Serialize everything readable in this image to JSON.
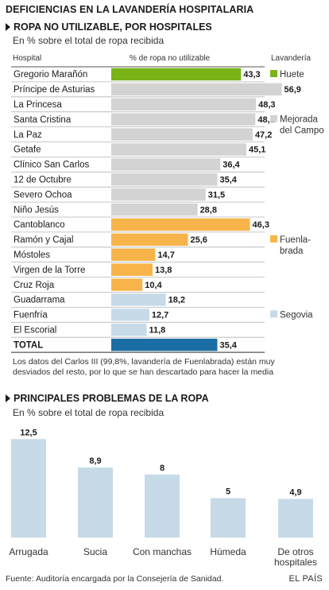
{
  "title": "DEFICIENCIAS EN LA LAVANDERÍA HOSPITALARIA",
  "section1": {
    "title": "ROPA NO UTILIZABLE, POR HOSPITALES",
    "subtitle": "En % sobre el total de ropa recibida",
    "col_hospital": "Hospital",
    "col_percent": "% de ropa no utilizable",
    "col_laundry": "Lavandería",
    "note": "Los datos del Carlos III (99,8%, lavandería de Fuenlabrada) están muy desviados del resto, por lo que se han descartado para hacer la media"
  },
  "section2": {
    "title": "PRINCIPALES PROBLEMAS DE LA ROPA",
    "subtitle": "En % sobre el total de ropa recibida"
  },
  "footer": {
    "source": "Fuente: Auditoría encargada por la Consejería de Sanidad.",
    "brand": "EL PAÍS"
  },
  "colors": {
    "huete": "#7ab317",
    "mejorada": "#d3d3d3",
    "fuenlabrada": "#f7b44a",
    "segovia": "#c6dae8",
    "total": "#1b6ea4",
    "problems": "#c6dae8"
  },
  "chart_data": [
    {
      "type": "bar",
      "orientation": "horizontal",
      "categories": [
        "Gregorio Marañón",
        "Príncipe de Asturias",
        "La Princesa",
        "Santa Cristina",
        "La Paz",
        "Getafe",
        "Clínico San Carlos",
        "12 de Octubre",
        "Severo Ochoa",
        "Niño Jesús",
        "Cantoblanco",
        "Ramón y Cajal",
        "Móstoles",
        "Virgen de la Torre",
        "Cruz Roja",
        "Guadarrama",
        "Fuenfría",
        "El Escorial",
        "TOTAL"
      ],
      "values": [
        43.3,
        56.9,
        48.3,
        48.1,
        47.2,
        45.1,
        36.4,
        35.4,
        31.5,
        28.8,
        46.3,
        25.6,
        14.7,
        13.8,
        10.4,
        18.2,
        12.7,
        11.8,
        35.4
      ],
      "value_labels": [
        "43,3",
        "56,9",
        "48,3",
        "48,1",
        "47,2",
        "45,1",
        "36,4",
        "35,4",
        "31,5",
        "28,8",
        "46,3",
        "25,6",
        "14,7",
        "13,8",
        "10,4",
        "18,2",
        "12,7",
        "11,8",
        "35,4"
      ],
      "groups": [
        "huete",
        "mejorada",
        "mejorada",
        "mejorada",
        "mejorada",
        "mejorada",
        "mejorada",
        "mejorada",
        "mejorada",
        "mejorada",
        "fuenlabrada",
        "fuenlabrada",
        "fuenlabrada",
        "fuenlabrada",
        "fuenlabrada",
        "segovia",
        "segovia",
        "segovia",
        "total"
      ],
      "legend": [
        {
          "group": "huete",
          "label": "Huete"
        },
        {
          "group": "mejorada",
          "label": "Mejorada del Campo"
        },
        {
          "group": "fuenlabrada",
          "label": "Fuenla-brada"
        },
        {
          "group": "segovia",
          "label": "Segovia"
        }
      ],
      "legend_placement": "right",
      "xlim": [
        0,
        60
      ],
      "grid": false
    },
    {
      "type": "bar",
      "orientation": "vertical",
      "categories": [
        "Arrugada",
        "Sucia",
        "Con manchas",
        "Húmeda",
        "De otros hospitales"
      ],
      "values": [
        12.5,
        8.9,
        8,
        5,
        4.9
      ],
      "value_labels": [
        "12,5",
        "8,9",
        "8",
        "5",
        "4,9"
      ],
      "ylim": [
        0,
        13
      ],
      "grid": false
    }
  ]
}
